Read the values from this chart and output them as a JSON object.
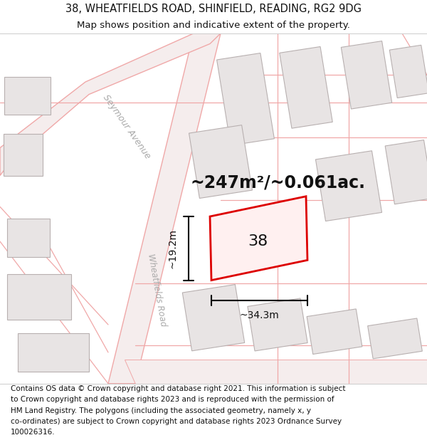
{
  "title_line1": "38, WHEATFIELDS ROAD, SHINFIELD, READING, RG2 9DG",
  "title_line2": "Map shows position and indicative extent of the property.",
  "footer_lines": [
    "Contains OS data © Crown copyright and database right 2021. This information is subject",
    "to Crown copyright and database rights 2023 and is reproduced with the permission of",
    "HM Land Registry. The polygons (including the associated geometry, namely x, y",
    "co-ordinates) are subject to Crown copyright and database rights 2023 Ordnance Survey",
    "100026316."
  ],
  "map_bg": "#ffffff",
  "building_fill": "#e8e4e4",
  "building_edge": "#b8b0b0",
  "road_outline_color": "#f0a8a8",
  "road_fill": "#f5eded",
  "highlight_fill": "#fff0f0",
  "highlight_edge": "#dd0000",
  "area_text": "~247m²/~0.061ac.",
  "dim_h_label": "~34.3m",
  "dim_v_label": "~19.2m",
  "seymour_label": "Seymour Avenue",
  "road_label": "Wheatfields Road",
  "title_fontsize": 10,
  "footer_fontsize": 7.5,
  "number_text": "38"
}
